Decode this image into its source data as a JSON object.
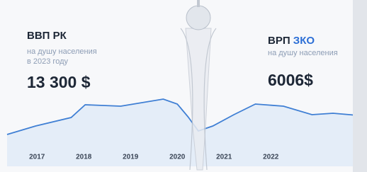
{
  "chart_data": {
    "type": "line",
    "panels": [
      {
        "title": "ВВП РК",
        "subtitle": [
          "на душу населения",
          "в 2023 году"
        ],
        "value": "13 300 $"
      },
      {
        "title": "ВРП",
        "title_accent": "ЗКО",
        "subtitle": [
          "на душу населения"
        ],
        "value": "6006$"
      }
    ],
    "x": [
      2016.36,
      2016.97,
      2017.73,
      2018.03,
      2018.79,
      2019.7,
      2020.0,
      2020.23,
      2020.45,
      2020.76,
      2021.21,
      2021.67,
      2022.27,
      2022.88,
      2023.33,
      2023.86
    ],
    "values": [
      22.5,
      28.5,
      34.5,
      43.5,
      42.5,
      47.5,
      44,
      35,
      25,
      28.5,
      36.5,
      44,
      42.5,
      36.5,
      37.5,
      36
    ],
    "color": "#3f7fd4",
    "area_color": "#e4edf8",
    "xlim": [
      2016.36,
      2023.86
    ],
    "xticks": [
      2017,
      2018,
      2019,
      2020,
      2021,
      2022
    ],
    "ylim": [
      0,
      100
    ]
  }
}
